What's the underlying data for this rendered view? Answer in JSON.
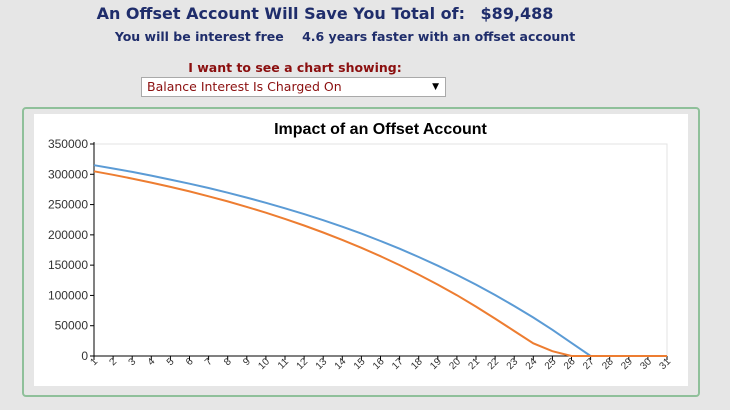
{
  "header": {
    "title": "An Offset Account Will Save You Total of:",
    "amount": "$89,488",
    "sub_prefix": "You will be interest free",
    "sub_years": "4.6 years faster with an offset account"
  },
  "selector": {
    "label": "I want to see a chart showing:",
    "selected": "Balance Interest Is Charged On"
  },
  "chart_data": {
    "type": "line",
    "title": "Impact of an Offset Account",
    "xlabel": "",
    "ylabel": "",
    "ylim": [
      0,
      350000
    ],
    "yticks": [
      0,
      50000,
      100000,
      150000,
      200000,
      250000,
      300000,
      350000
    ],
    "x": [
      1,
      2,
      3,
      4,
      5,
      6,
      7,
      8,
      9,
      10,
      11,
      12,
      13,
      14,
      15,
      16,
      17,
      18,
      19,
      20,
      21,
      22,
      23,
      24,
      25,
      26,
      27,
      28,
      29,
      30,
      31
    ],
    "legend": "none",
    "grid": false,
    "series": [
      {
        "color": "#5b9bd5",
        "values": [
          315000,
          309600,
          303900,
          297800,
          291300,
          284500,
          277300,
          269600,
          261500,
          253000,
          243900,
          234300,
          224200,
          213400,
          202000,
          189900,
          177100,
          163500,
          149100,
          133900,
          117800,
          100700,
          82600,
          63500,
          43200,
          21700,
          0,
          0,
          0,
          0,
          0
        ]
      },
      {
        "color": "#ed7d31",
        "values": [
          305000,
          299200,
          292900,
          286300,
          279200,
          271700,
          263700,
          255200,
          246200,
          236600,
          226300,
          215500,
          203900,
          191600,
          178600,
          164700,
          150000,
          134400,
          117800,
          100300,
          81600,
          61800,
          41200,
          21000,
          8000,
          0,
          0,
          0,
          0,
          0,
          0
        ]
      }
    ]
  }
}
